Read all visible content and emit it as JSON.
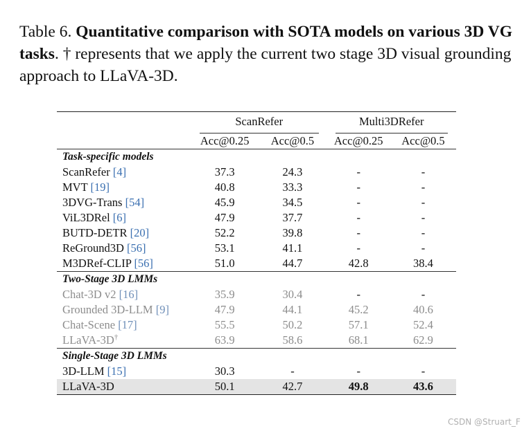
{
  "caption": {
    "prefix": "Table 6.",
    "bold": "Quantitative comparison with SOTA models on various 3D VG tasks",
    "rest": ". † represents that we apply the current two stage 3D visual grounding approach to LLaVA-3D."
  },
  "table": {
    "group_headers": [
      "ScanRefer",
      "Multi3DRefer"
    ],
    "columns": [
      "Acc@0.25",
      "Acc@0.5",
      "Acc@0.25",
      "Acc@0.5"
    ],
    "sections": [
      {
        "title": "Task-specific models",
        "rows": [
          {
            "name": "ScanRefer ",
            "cite": "[4]",
            "values": [
              "37.3",
              "24.3",
              "-",
              "-"
            ]
          },
          {
            "name": "MVT ",
            "cite": "[19]",
            "values": [
              "40.8",
              "33.3",
              "-",
              "-"
            ]
          },
          {
            "name": "3DVG-Trans ",
            "cite": "[54]",
            "values": [
              "45.9",
              "34.5",
              "-",
              "-"
            ]
          },
          {
            "name": "ViL3DRel ",
            "cite": "[6]",
            "values": [
              "47.9",
              "37.7",
              "-",
              "-"
            ]
          },
          {
            "name": "BUTD-DETR ",
            "cite": "[20]",
            "values": [
              "52.2",
              "39.8",
              "-",
              "-"
            ]
          },
          {
            "name": "ReGround3D ",
            "cite": "[56]",
            "values": [
              "53.1",
              "41.1",
              "-",
              "-"
            ]
          },
          {
            "name": "M3DRef-CLIP ",
            "cite": "[56]",
            "values": [
              "51.0",
              "44.7",
              "42.8",
              "38.4"
            ]
          }
        ]
      },
      {
        "title": "Two-Stage 3D LMMs",
        "rows": [
          {
            "name": "Chat-3D v2 ",
            "cite": "[16]",
            "values": [
              "35.9",
              "30.4",
              "-",
              "-"
            ]
          },
          {
            "name": "Grounded 3D-LLM ",
            "cite": "[9]",
            "values": [
              "47.9",
              "44.1",
              "45.2",
              "40.6"
            ]
          },
          {
            "name": "Chat-Scene ",
            "cite": "[17]",
            "values": [
              "55.5",
              "50.2",
              "57.1",
              "52.4"
            ]
          },
          {
            "name": "LLaVA-3D",
            "sup": "†",
            "values": [
              "63.9",
              "58.6",
              "68.1",
              "62.9"
            ]
          }
        ]
      },
      {
        "title": "Single-Stage 3D LMMs",
        "rows": [
          {
            "name": "3D-LLM ",
            "cite": "[15]",
            "values": [
              "30.3",
              "-",
              "-",
              "-"
            ]
          },
          {
            "name": "LLaVA-3D",
            "values": [
              "50.1",
              "42.7",
              "49.8",
              "43.6"
            ]
          }
        ]
      }
    ]
  },
  "watermark": "CSDN @Struart_F",
  "colors": {
    "citation": "#3a6fb0",
    "gray_text": "#8c8c8c",
    "highlight_row": "#e4e4e4"
  }
}
